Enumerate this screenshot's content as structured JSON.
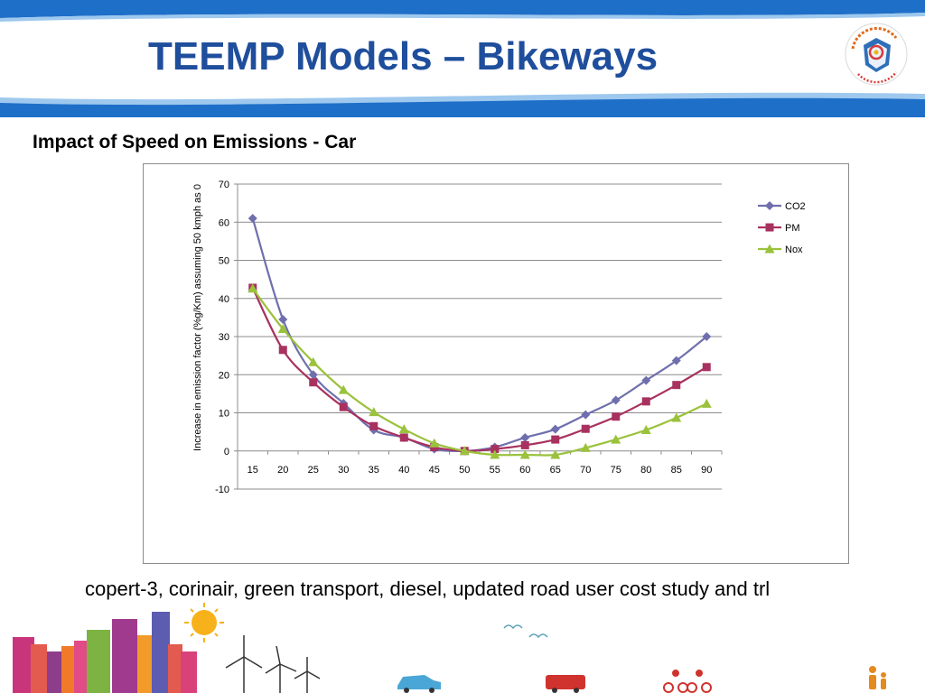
{
  "slide": {
    "title": "TEEMP Models – Bikeways",
    "logo_text": "CLEAN AIR INITIATIVE for Asian Cities",
    "chart_heading": "Impact of Speed on Emissions - Car",
    "caption": "copert-3, corinair, green transport, diesel, updated road user cost study and trl"
  },
  "colors": {
    "header_band": "#1e6fc8",
    "title": "#1f4e9c",
    "co2": "#6f6fae",
    "pm": "#a8315f",
    "nox": "#9ac23c",
    "gridline": "#8c8c8c"
  },
  "chart_data": {
    "type": "line",
    "title": "",
    "xlabel": "",
    "ylabel": "Increase in emission factor (%g/Km) assuming 50 kmph as 0",
    "categories": [
      "15",
      "20",
      "25",
      "30",
      "35",
      "40",
      "45",
      "50",
      "55",
      "60",
      "65",
      "70",
      "75",
      "80",
      "85",
      "90"
    ],
    "ylim": [
      -10,
      70
    ],
    "yticks": [
      "-10",
      "0",
      "10",
      "20",
      "30",
      "40",
      "50",
      "60",
      "70"
    ],
    "grid": true,
    "legend_position": "right",
    "series": [
      {
        "name": "CO2",
        "marker": "diamond",
        "color": "#6f6fae",
        "values": [
          61,
          34.5,
          20,
          12.5,
          5.5,
          3.5,
          0.5,
          0,
          1,
          3.5,
          5.7,
          9.5,
          13.3,
          18.5,
          23.7,
          30
        ]
      },
      {
        "name": "PM",
        "marker": "square",
        "color": "#a8315f",
        "values": [
          42.8,
          26.5,
          18,
          11.5,
          6.5,
          3.5,
          1,
          0,
          0.5,
          1.5,
          3,
          5.8,
          9,
          13,
          17.3,
          22
        ]
      },
      {
        "name": "Nox",
        "marker": "triangle",
        "color": "#9ac23c",
        "values": [
          42.6,
          32,
          23.3,
          16,
          10.2,
          5.7,
          2,
          0,
          -1,
          -1,
          -1,
          0.8,
          3,
          5.5,
          8.7,
          12.4
        ]
      }
    ]
  }
}
